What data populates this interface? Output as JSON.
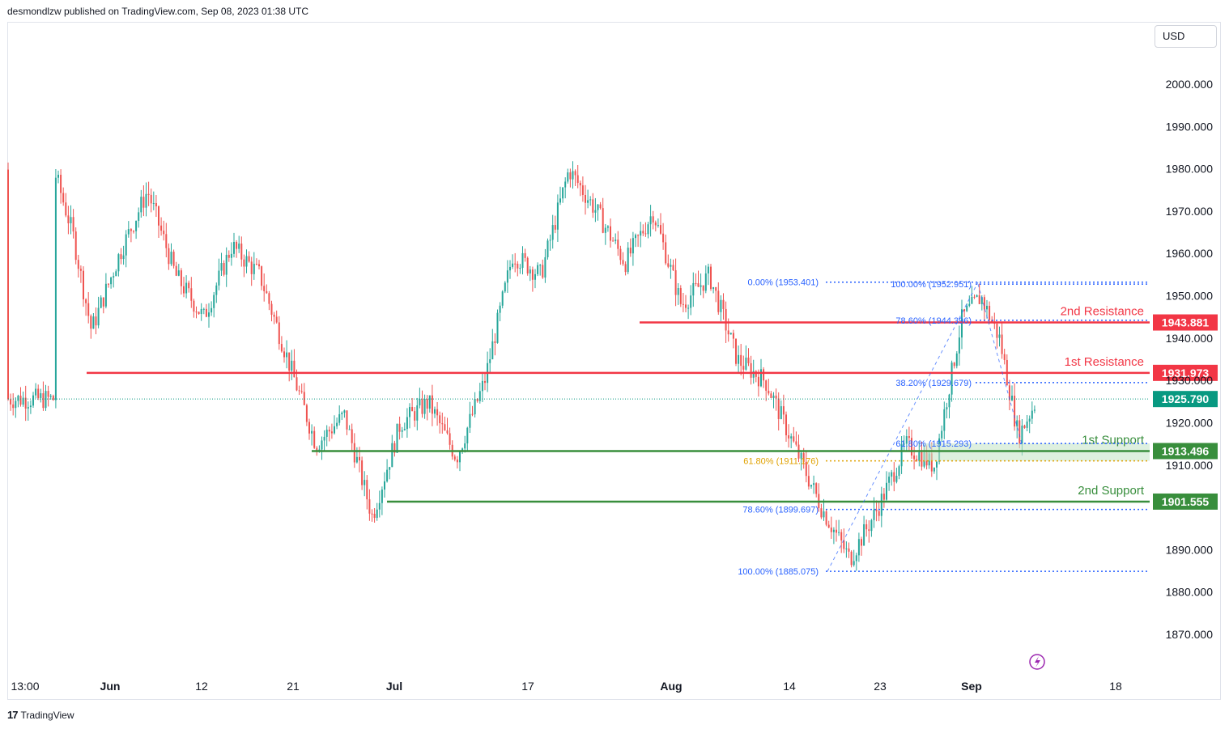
{
  "header": {
    "published": "desmondlzw published on TradingView.com, Sep 08, 2023 01:38 UTC"
  },
  "currency": "USD",
  "footer": {
    "brand": "TradingView"
  },
  "colors": {
    "up": "#26a69a",
    "down": "#ef5350",
    "resistance": "#f23645",
    "support": "#388e3c",
    "fib": "#2962ff",
    "fib_gold": "#e0a100",
    "current": "#089981"
  },
  "chart_data": {
    "type": "candlestick",
    "y_ticks": [
      "2000.000",
      "1990.000",
      "1980.000",
      "1970.000",
      "1960.000",
      "1950.000",
      "1940.000",
      "1930.000",
      "1920.000",
      "1910.000",
      "1890.000",
      "1880.000",
      "1870.000"
    ],
    "x_ticks": [
      "13:00",
      "Jun",
      "12",
      "21",
      "Jul",
      "17",
      "Aug",
      "14",
      "23",
      "Sep",
      "18"
    ],
    "levels": [
      {
        "label": "2nd Resistance",
        "value": "1943.881",
        "kind": "resistance"
      },
      {
        "label": "1st Resistance",
        "value": "1931.973",
        "kind": "resistance"
      },
      {
        "label": "1st Support",
        "value": "1913.496",
        "kind": "support"
      },
      {
        "label": "2nd Support",
        "value": "1901.555",
        "kind": "support"
      }
    ],
    "current_price": "1925.790",
    "fib_down": [
      {
        "label": "0.00% (1953.401)",
        "value": 1953.401
      },
      {
        "label": "61.80% (1911.176)",
        "value": 1911.176
      },
      {
        "label": "78.60% (1899.697)",
        "value": 1899.697
      },
      {
        "label": "100.00% (1885.075)",
        "value": 1885.075
      }
    ],
    "fib_up": [
      {
        "label": "100.00% (1952.951)",
        "value": 1952.951
      },
      {
        "label": "78.60% (1944.396)",
        "value": 1944.396
      },
      {
        "label": "38.20% (1929.679)",
        "value": 1929.679
      },
      {
        "label": "61.80% (1915.293)",
        "value": 1915.293
      }
    ],
    "price_path": [
      [
        "May 26",
        1980
      ],
      [
        "May 28",
        1965
      ],
      [
        "May 30",
        1942
      ],
      [
        "Jun 2",
        1960
      ],
      [
        "Jun 5",
        1975
      ],
      [
        "Jun 8",
        1955
      ],
      [
        "Jun 11",
        1945
      ],
      [
        "Jun 14",
        1962
      ],
      [
        "Jun 17",
        1955
      ],
      [
        "Jun 20",
        1935
      ],
      [
        "Jun 23",
        1915
      ],
      [
        "Jun 26",
        1922
      ],
      [
        "Jun 29",
        1898
      ],
      [
        "Jul 2",
        1920
      ],
      [
        "Jul 5",
        1925
      ],
      [
        "Jul 8",
        1912
      ],
      [
        "Jul 11",
        1930
      ],
      [
        "Jul 14",
        1960
      ],
      [
        "Jul 17",
        1955
      ],
      [
        "Jul 20",
        1980
      ],
      [
        "Jul 23",
        1970
      ],
      [
        "Jul 26",
        1958
      ],
      [
        "Jul 29",
        1970
      ],
      [
        "Aug 1",
        1948
      ],
      [
        "Aug 4",
        1955
      ],
      [
        "Aug 7",
        1935
      ],
      [
        "Aug 10",
        1930
      ],
      [
        "Aug 13",
        1915
      ],
      [
        "Aug 16",
        1900
      ],
      [
        "Aug 19",
        1888
      ],
      [
        "Aug 22",
        1900
      ],
      [
        "Aug 25",
        1915
      ],
      [
        "Aug 28",
        1910
      ],
      [
        "Aug 31",
        1945
      ],
      [
        "Sep 2",
        1950
      ],
      [
        "Sep 4",
        1940
      ],
      [
        "Sep 6",
        1917
      ],
      [
        "Sep 8",
        1925.79
      ]
    ]
  }
}
